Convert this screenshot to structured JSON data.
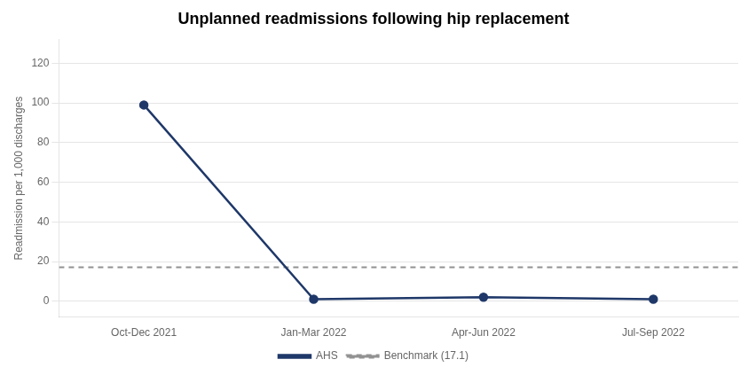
{
  "chart_data": {
    "type": "line",
    "title": "Unplanned readmissions following hip replacement",
    "y_label": "Readmission per 1,000 discharges",
    "categories": [
      "Oct-Dec 2021",
      "Jan-Mar 2022",
      "Apr-Jun 2022",
      "Jul-Sep 2022"
    ],
    "series": [
      {
        "name": "AHS",
        "color": "#1f3869",
        "values": [
          99,
          1,
          2,
          1
        ],
        "marker": "circle",
        "line_style": "solid"
      },
      {
        "name": "Benchmark (17.1)",
        "type": "hline",
        "color": "#929292",
        "value": 17.1,
        "line_style": "dashed"
      }
    ],
    "ylim": [
      -8,
      132
    ],
    "yticks": [
      0,
      20,
      40,
      60,
      80,
      100,
      120
    ],
    "grid": "y",
    "legend": "bottom"
  }
}
